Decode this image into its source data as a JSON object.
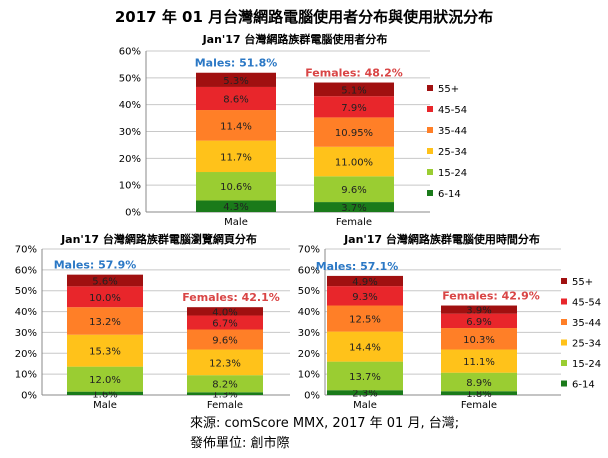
{
  "title": "2017 年 01 月台灣網路電腦使用者分布與使用狀況分布",
  "source": "來源: comScore MMX, 2017 年 01 月, 台灣;",
  "publisher": "發佈單位: 創市際",
  "colors": {
    "6-14": "#1a7a1a",
    "15-24": "#9acd32",
    "25-34": "#ffc21a",
    "35-44": "#ff7f27",
    "45-54": "#e8262b",
    "55+": "#a01010",
    "male_label": "#2b78c5",
    "female_label": "#d94545"
  },
  "chart_data": [
    {
      "type": "bar",
      "stacked": true,
      "title": "Jan'17 台灣網路族群電腦使用者分布",
      "categories": [
        "Male",
        "Female"
      ],
      "group_labels": [
        "Males: 51.8%",
        "Females: 48.2%"
      ],
      "ylim": [
        0,
        60
      ],
      "yticks": [
        "0%",
        "10%",
        "20%",
        "30%",
        "40%",
        "50%",
        "60%"
      ],
      "grid": true,
      "legend_position": "right",
      "series": [
        {
          "name": "6-14",
          "values": [
            4.3,
            3.7
          ],
          "labels": [
            "4.3%",
            "3.7%"
          ]
        },
        {
          "name": "15-24",
          "values": [
            10.6,
            9.6
          ],
          "labels": [
            "10.6%",
            "9.6%"
          ]
        },
        {
          "name": "25-34",
          "values": [
            11.7,
            11.0
          ],
          "labels": [
            "11.7%",
            "11.00%"
          ]
        },
        {
          "name": "35-44",
          "values": [
            11.4,
            10.95
          ],
          "labels": [
            "11.4%",
            "10.95%"
          ]
        },
        {
          "name": "45-54",
          "values": [
            8.6,
            7.9
          ],
          "labels": [
            "8.6%",
            "7.9%"
          ]
        },
        {
          "name": "55+",
          "values": [
            5.3,
            5.1
          ],
          "labels": [
            "5.3%",
            "5.1%"
          ]
        }
      ]
    },
    {
      "type": "bar",
      "stacked": true,
      "title": "Jan'17 台灣網路族群電腦瀏覽網頁分布",
      "categories": [
        "Male",
        "Female"
      ],
      "group_labels": [
        "Males: 57.9%",
        "Females: 42.1%"
      ],
      "ylim": [
        0,
        70
      ],
      "yticks": [
        "0%",
        "10%",
        "20%",
        "30%",
        "40%",
        "50%",
        "60%",
        "70%"
      ],
      "grid": true,
      "legend_position": "none",
      "series": [
        {
          "name": "6-14",
          "values": [
            1.6,
            1.3
          ],
          "labels": [
            "1.6%",
            "1.3%"
          ]
        },
        {
          "name": "15-24",
          "values": [
            12.0,
            8.2
          ],
          "labels": [
            "12.0%",
            "8.2%"
          ]
        },
        {
          "name": "25-34",
          "values": [
            15.3,
            12.3
          ],
          "labels": [
            "15.3%",
            "12.3%"
          ]
        },
        {
          "name": "35-44",
          "values": [
            13.2,
            9.6
          ],
          "labels": [
            "13.2%",
            "9.6%"
          ]
        },
        {
          "name": "45-54",
          "values": [
            10.0,
            6.7
          ],
          "labels": [
            "10.0%",
            "6.7%"
          ]
        },
        {
          "name": "55+",
          "values": [
            5.6,
            4.0
          ],
          "labels": [
            "5.6%",
            "4.0%"
          ]
        }
      ]
    },
    {
      "type": "bar",
      "stacked": true,
      "title": "Jan'17 台灣網路族群電腦使用時間分布",
      "categories": [
        "Male",
        "Female"
      ],
      "group_labels": [
        "Males: 57.1%",
        "Females: 42.9%"
      ],
      "ylim": [
        0,
        70
      ],
      "yticks": [
        "0%",
        "10%",
        "20%",
        "30%",
        "40%",
        "50%",
        "60%",
        "70%"
      ],
      "grid": true,
      "legend_position": "right",
      "series": [
        {
          "name": "6-14",
          "values": [
            2.3,
            1.8
          ],
          "labels": [
            "2.3%",
            "1.8%"
          ]
        },
        {
          "name": "15-24",
          "values": [
            13.7,
            8.9
          ],
          "labels": [
            "13.7%",
            "8.9%"
          ]
        },
        {
          "name": "25-34",
          "values": [
            14.4,
            11.1
          ],
          "labels": [
            "14.4%",
            "11.1%"
          ]
        },
        {
          "name": "35-44",
          "values": [
            12.5,
            10.3
          ],
          "labels": [
            "12.5%",
            "10.3%"
          ]
        },
        {
          "name": "45-54",
          "values": [
            9.3,
            6.9
          ],
          "labels": [
            "9.3%",
            "6.9%"
          ]
        },
        {
          "name": "55+",
          "values": [
            4.9,
            3.9
          ],
          "labels": [
            "4.9%",
            "3.9%"
          ]
        }
      ]
    }
  ]
}
